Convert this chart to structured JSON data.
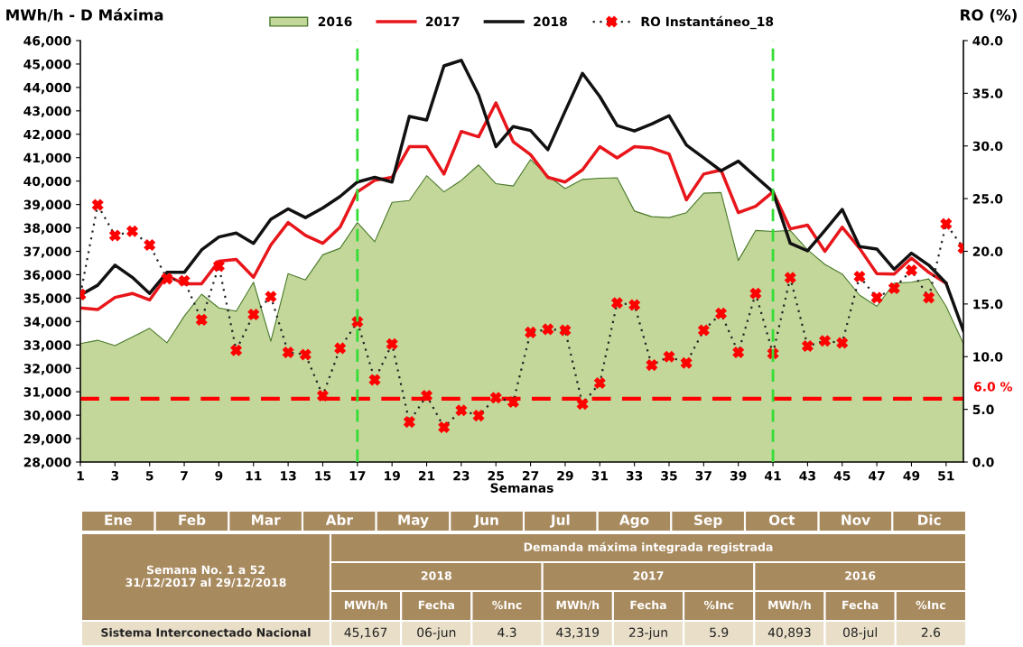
{
  "chart_data": {
    "type": "line",
    "xlabel": "Semanas",
    "ylabel": "MWh/h - D Máxima",
    "y2label": "RO (%)",
    "x": [
      1,
      2,
      3,
      4,
      5,
      6,
      7,
      8,
      9,
      10,
      11,
      12,
      13,
      14,
      15,
      16,
      17,
      18,
      19,
      20,
      21,
      22,
      23,
      24,
      25,
      26,
      27,
      28,
      29,
      30,
      31,
      32,
      33,
      34,
      35,
      36,
      37,
      38,
      39,
      40,
      41,
      42,
      43,
      44,
      45,
      46,
      47,
      48,
      49,
      50,
      51,
      52
    ],
    "xlim": [
      1,
      52
    ],
    "xticks": [
      1,
      3,
      5,
      7,
      9,
      11,
      13,
      15,
      17,
      19,
      21,
      23,
      25,
      27,
      29,
      31,
      33,
      35,
      37,
      39,
      41,
      43,
      45,
      47,
      49,
      51
    ],
    "ylim": [
      28000,
      46000
    ],
    "yticks": [
      {
        "value": 28000,
        "label": "28,000"
      },
      {
        "value": 29000,
        "label": "29,000"
      },
      {
        "value": 30000,
        "label": "30,000"
      },
      {
        "value": 31000,
        "label": "31,000"
      },
      {
        "value": 32000,
        "label": "32,000"
      },
      {
        "value": 33000,
        "label": "33,000"
      },
      {
        "value": 34000,
        "label": "34,000"
      },
      {
        "value": 35000,
        "label": "35,000"
      },
      {
        "value": 36000,
        "label": "36,000"
      },
      {
        "value": 37000,
        "label": "37,000"
      },
      {
        "value": 38000,
        "label": "38,000"
      },
      {
        "value": 39000,
        "label": "39,000"
      },
      {
        "value": 40000,
        "label": "40,000"
      },
      {
        "value": 41000,
        "label": "41,000"
      },
      {
        "value": 42000,
        "label": "42,000"
      },
      {
        "value": 43000,
        "label": "43,000"
      },
      {
        "value": 44000,
        "label": "44,000"
      },
      {
        "value": 45000,
        "label": "45,000"
      },
      {
        "value": 46000,
        "label": "46,000"
      }
    ],
    "y2lim": [
      0,
      40
    ],
    "y2ticks": [
      {
        "value": 0,
        "label": "0.0"
      },
      {
        "value": 5,
        "label": "5.0"
      },
      {
        "value": 10,
        "label": "10.0"
      },
      {
        "value": 15,
        "label": "15.0"
      },
      {
        "value": 20,
        "label": "20.0"
      },
      {
        "value": 25,
        "label": "25.0"
      },
      {
        "value": 30,
        "label": "30.0"
      },
      {
        "value": 35,
        "label": "35.0"
      },
      {
        "value": 40,
        "label": "40.0"
      }
    ],
    "legend": "top",
    "series": [
      {
        "name": "2016",
        "type": "area",
        "color": "#c4d79b",
        "values": [
          33060,
          33200,
          32970,
          33340,
          33710,
          33090,
          34230,
          35170,
          34580,
          34440,
          35680,
          33160,
          36050,
          35780,
          36850,
          37130,
          38230,
          37410,
          39090,
          39170,
          40230,
          39540,
          40030,
          40690,
          39890,
          39790,
          40920,
          40230,
          39680,
          40070,
          40120,
          40140,
          38720,
          38480,
          38440,
          38650,
          39480,
          39510,
          36610,
          37890,
          37850,
          37890,
          37060,
          36440,
          36030,
          35130,
          34650,
          35640,
          35680,
          35820,
          34650,
          33060
        ]
      },
      {
        "name": "2017",
        "color": "#e8161b",
        "values": [
          34580,
          34510,
          35030,
          35200,
          34920,
          35960,
          35610,
          35610,
          36580,
          36650,
          35890,
          37270,
          38230,
          37680,
          37340,
          38030,
          39540,
          40030,
          40160,
          41470,
          41470,
          40300,
          42120,
          41890,
          43340,
          41680,
          41130,
          40160,
          39960,
          40480,
          41470,
          40990,
          41470,
          41410,
          41160,
          39200,
          40300,
          40470,
          38650,
          38920,
          39540,
          37960,
          38120,
          37000,
          38030,
          37130,
          36050,
          36030,
          36710,
          36100,
          35640,
          null
        ]
      },
      {
        "name": "2018",
        "color": "#111111",
        "values": [
          35130,
          35550,
          36410,
          35890,
          35200,
          36100,
          36100,
          37060,
          37610,
          37780,
          37340,
          38370,
          38810,
          38440,
          38850,
          39340,
          39960,
          40160,
          39960,
          42760,
          42610,
          44920,
          45160,
          43680,
          41470,
          42330,
          42160,
          41340,
          42990,
          44600,
          43610,
          42370,
          42140,
          42440,
          42790,
          41540,
          40990,
          40440,
          40850,
          40190,
          39540,
          37340,
          37020,
          37890,
          38790,
          37200,
          37100,
          36230,
          36920,
          36410,
          35640,
          33610
        ]
      },
      {
        "name": "RO Instantáneo_18",
        "axis": "y2",
        "color": "#ff0000",
        "marker": "cross",
        "line_style": "dotted",
        "values": [
          15.9,
          24.4,
          21.5,
          21.9,
          20.6,
          17.4,
          17.2,
          13.5,
          18.6,
          10.6,
          14.0,
          15.7,
          10.4,
          10.2,
          6.3,
          10.8,
          13.3,
          7.8,
          11.2,
          3.8,
          6.3,
          3.3,
          4.9,
          4.4,
          6.1,
          5.7,
          12.3,
          12.6,
          12.5,
          5.5,
          7.5,
          15.1,
          14.9,
          9.2,
          10.0,
          9.4,
          12.5,
          14.1,
          10.4,
          16.0,
          10.3,
          17.5,
          11.0,
          11.5,
          11.3,
          17.6,
          15.6,
          16.5,
          18.2,
          15.6,
          22.6,
          20.3
        ]
      }
    ],
    "ref_lines": [
      {
        "axis": "y2",
        "value": 6.0,
        "label": "6.0 %",
        "color": "#ff0000",
        "line_style": "dashed"
      },
      {
        "axis": "x",
        "value": 17,
        "color": "#33dd33",
        "line_style": "dashed"
      },
      {
        "axis": "x",
        "value": 41,
        "color": "#33dd33",
        "line_style": "dashed"
      }
    ],
    "annotations": [
      "Ene",
      "Feb",
      "Mar",
      "Abr",
      "May",
      "Jun",
      "Jul",
      "Ago",
      "Sep",
      "Oct",
      "Nov",
      "Dic",
      "Semana No. 1 a 52\n31/12/2017 al 29/12/2018",
      "Demanda máxima integrada registrada",
      "2018",
      "2017",
      "2016",
      "MWh/h",
      "Fecha",
      "%Inc",
      "MWh/h",
      "Fecha",
      "%Inc",
      "MWh/h",
      "Fecha",
      "%Inc",
      "Sistema Interconectado Nacional",
      "45,167",
      "06-jun",
      "4.3",
      "43,319",
      "23-jun",
      "5.9",
      "40,893",
      "08-jul",
      "2.6"
    ]
  }
}
